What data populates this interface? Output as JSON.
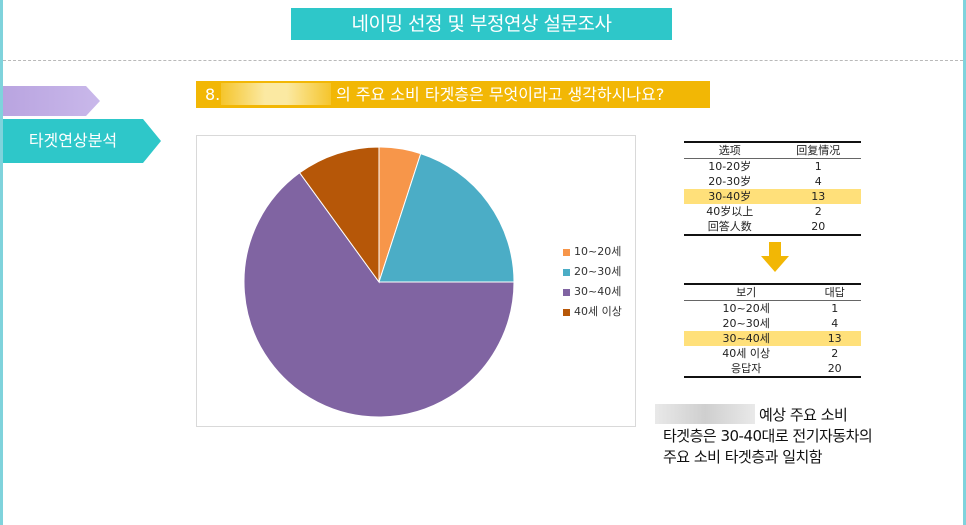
{
  "header": {
    "title": "네이밍 선정 및 부정연상 설문조사"
  },
  "sidebar": {
    "tab_label": "타겟연상분석"
  },
  "question": {
    "number": "8.",
    "text": "의 주요 소비 타겟층은 무엇이라고 생각하시나요?"
  },
  "table_original": {
    "headers": [
      "选项",
      "回复情况"
    ],
    "rows": [
      [
        "10-20岁",
        "1"
      ],
      [
        "20-30岁",
        "4"
      ],
      [
        "30-40岁",
        "13"
      ],
      [
        "40岁以上",
        "2"
      ],
      [
        "回答人数",
        "20"
      ]
    ],
    "highlight_row": 2
  },
  "table_translated": {
    "headers": [
      "보기",
      "대답"
    ],
    "rows": [
      [
        "10~20세",
        "1"
      ],
      [
        "20~30세",
        "4"
      ],
      [
        "30~40세",
        "13"
      ],
      [
        "40세 이상",
        "2"
      ],
      [
        "응답자",
        "20"
      ]
    ],
    "highlight_row": 2
  },
  "note": {
    "line1": "예상 주요 소비",
    "line2": "타겟층은 30-40대로 전기자동차의",
    "line3": "주요 소비 타겟층과 일치함"
  },
  "colors": {
    "banner": "#2ec7c9",
    "question_bar": "#f2b705",
    "arrow": "#f2b705",
    "highlight": "#ffe07a"
  },
  "chart_data": {
    "type": "pie",
    "categories": [
      "10~20세",
      "20~30세",
      "30~40세",
      "40세 이상"
    ],
    "values": [
      1,
      4,
      13,
      2
    ],
    "colors": [
      "#f7964a",
      "#4badc6",
      "#8064a2",
      "#b65708"
    ],
    "legend_position": "right",
    "start_angle": "12 o'clock",
    "direction": "clockwise"
  }
}
